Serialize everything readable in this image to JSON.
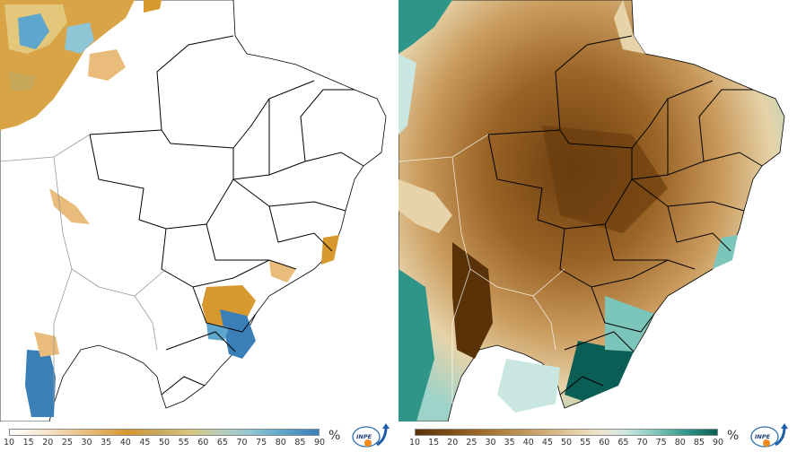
{
  "legend": {
    "ticks": [
      "10",
      "15",
      "20",
      "25",
      "30",
      "35",
      "40",
      "45",
      "50",
      "55",
      "60",
      "65",
      "70",
      "75",
      "80",
      "85",
      "90"
    ],
    "unit": "%"
  },
  "logo": {
    "text": "INPE"
  },
  "colors": {
    "left_scale": [
      "#ffffff",
      "#f6e3c9",
      "#e9bc7c",
      "#d7982e",
      "#c8a85a",
      "#d9c47a",
      "#b8cfb9",
      "#8fc6d5",
      "#5fa6cc",
      "#3a7fb8"
    ],
    "right_scale": [
      "#5a3208",
      "#7a4a14",
      "#9a6426",
      "#b98a4a",
      "#d3b07a",
      "#e6d3a9",
      "#efe7d1",
      "#c9e6e0",
      "#7cc5bb",
      "#2e9588",
      "#0b5e55"
    ],
    "ocean": "#ffffff",
    "border": "#000000"
  },
  "maps": [
    {
      "name": "anomaly-map"
    },
    {
      "name": "relative-humidity-map"
    }
  ]
}
